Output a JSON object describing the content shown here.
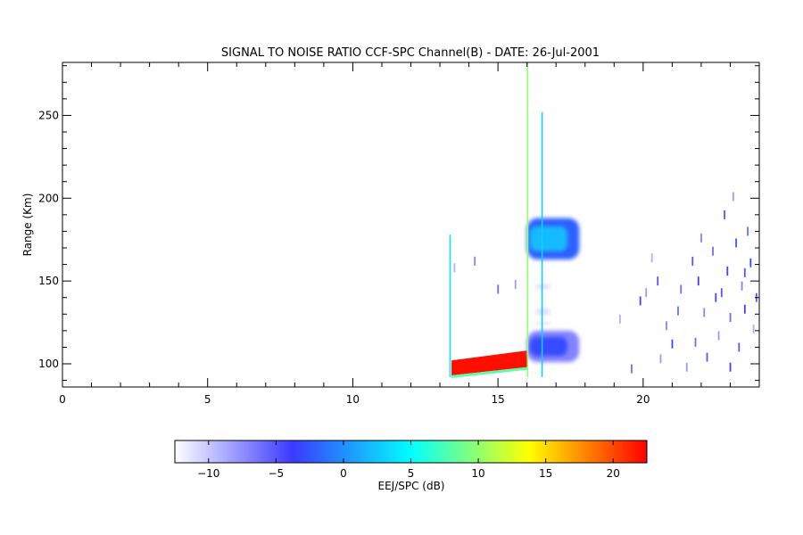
{
  "chart_data": {
    "type": "heatmap",
    "title": "SIGNAL TO NOISE RATIO CCF-SPC Channel(B) - DATE: 26-Jul-2001",
    "xlabel": "",
    "ylabel": "Range (Km)",
    "xlim": [
      0,
      24
    ],
    "ylim": [
      86,
      282
    ],
    "x_ticks": [
      0,
      5,
      10,
      15,
      20
    ],
    "y_ticks": [
      100,
      150,
      200,
      250
    ],
    "x_tick_labels": [
      "0",
      "5",
      "10",
      "15",
      "20"
    ],
    "y_tick_labels": [
      "100",
      "150",
      "200",
      "250"
    ],
    "grid": false,
    "colorbar": {
      "label": "EEJ/SPC (dB)",
      "range": [
        -12.5,
        22.5
      ],
      "ticks": [
        -10,
        -5,
        0,
        5,
        10,
        15,
        20
      ],
      "tick_labels": [
        "−10",
        "−5",
        "0",
        "5",
        "10",
        "15",
        "20"
      ],
      "colors": [
        "#ffffff",
        "#3a3aff",
        "#00ffff",
        "#ffff00",
        "#ff0000"
      ]
    },
    "regions": [
      {
        "name": "eej-high",
        "x": [
          13.4,
          16.0
        ],
        "y_bottom": [
          93,
          98
        ],
        "y_top": [
          102,
          108
        ],
        "value": 22
      },
      {
        "name": "upper-layer",
        "x": [
          16.0,
          17.8
        ],
        "y": [
          163,
          188
        ],
        "value": 2
      },
      {
        "name": "lower-layer",
        "x": [
          16.0,
          17.8
        ],
        "y": [
          101,
          120
        ],
        "value": -3
      },
      {
        "name": "faint-band-1",
        "x": [
          16.2,
          16.9
        ],
        "y": [
          144,
          149
        ],
        "value": -11
      },
      {
        "name": "faint-band-2",
        "x": [
          16.2,
          16.9
        ],
        "y": [
          128,
          135
        ],
        "value": -11
      },
      {
        "name": "faint-band-3",
        "x": [
          16.2,
          16.9
        ],
        "y": [
          123,
          126
        ],
        "value": -11
      }
    ],
    "vertical_lines": [
      {
        "x": 13.35,
        "y": [
          92,
          178
        ],
        "value": 4
      },
      {
        "x": 16.02,
        "y": [
          92,
          282
        ],
        "value": 10
      },
      {
        "x": 16.52,
        "y": [
          92,
          252
        ],
        "value": 3
      }
    ],
    "scatter": [
      [
        19.6,
        97,
        -6
      ],
      [
        19.9,
        138,
        -4
      ],
      [
        20.1,
        143,
        -8
      ],
      [
        20.5,
        150,
        -5
      ],
      [
        20.8,
        123,
        -7
      ],
      [
        21.0,
        112,
        -3
      ],
      [
        21.3,
        145,
        -6
      ],
      [
        21.5,
        98,
        -8
      ],
      [
        21.7,
        162,
        -5
      ],
      [
        21.9,
        150,
        -4
      ],
      [
        22.1,
        131,
        -7
      ],
      [
        22.2,
        104,
        -5
      ],
      [
        22.4,
        168,
        -6
      ],
      [
        22.5,
        140,
        -3
      ],
      [
        22.6,
        117,
        -8
      ],
      [
        22.8,
        190,
        -5
      ],
      [
        22.9,
        156,
        -4
      ],
      [
        23.0,
        128,
        -6
      ],
      [
        23.1,
        201,
        -8
      ],
      [
        23.2,
        173,
        -2
      ],
      [
        23.3,
        110,
        -5
      ],
      [
        23.4,
        147,
        -7
      ],
      [
        23.5,
        133,
        -4
      ],
      [
        23.6,
        180,
        -6
      ],
      [
        23.7,
        161,
        -3
      ],
      [
        23.8,
        121,
        -9
      ],
      [
        23.9,
        140,
        -5
      ],
      [
        20.3,
        164,
        -9
      ],
      [
        21.2,
        132,
        -6
      ],
      [
        22.0,
        176,
        -7
      ],
      [
        23.0,
        98,
        -4
      ],
      [
        21.8,
        113,
        -6
      ],
      [
        22.7,
        143,
        -5
      ],
      [
        20.6,
        103,
        -8
      ],
      [
        23.5,
        155,
        -5
      ],
      [
        14.2,
        162,
        -7
      ],
      [
        13.5,
        158,
        -9
      ],
      [
        15.0,
        145,
        -6
      ],
      [
        15.6,
        148,
        -8
      ],
      [
        19.2,
        127,
        -9
      ]
    ]
  }
}
